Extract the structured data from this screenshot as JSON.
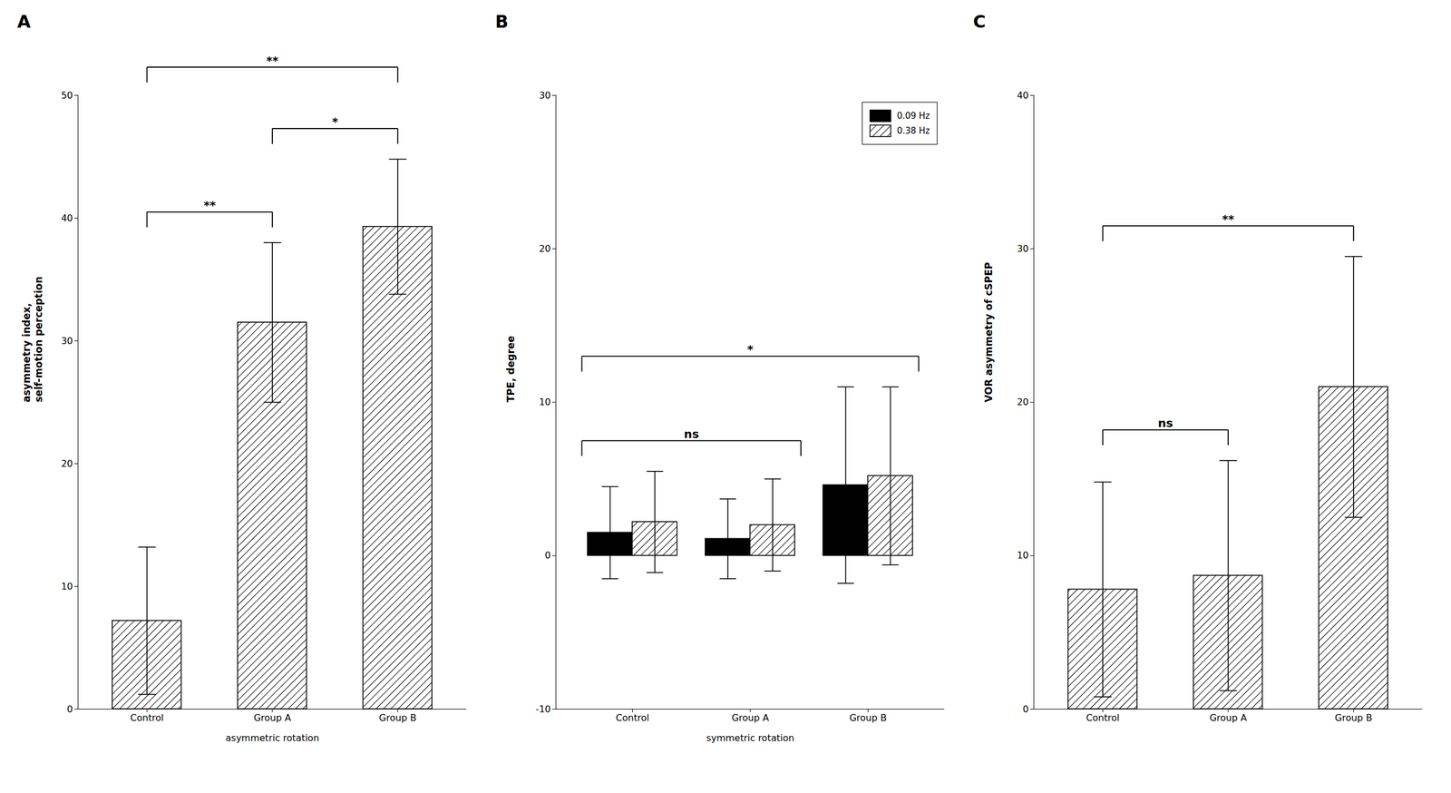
{
  "chart_data": [
    {
      "type": "bar",
      "title": "A",
      "categories": [
        "Control",
        "Group A",
        "Group B"
      ],
      "values": [
        7.2,
        31.5,
        39.3
      ],
      "errors": [
        6.0,
        6.5,
        5.5
      ],
      "color": "#ffffff",
      "ylabel": "asymmetry index,\nself-motion perception",
      "xlabel": "asymmetric rotation",
      "ylim": [
        0,
        50
      ],
      "yticks": [
        0,
        10,
        20,
        30,
        40,
        50
      ],
      "grid": false,
      "annotations": [
        {
          "text": "**",
          "between": [
            "Control",
            "Group A"
          ]
        },
        {
          "text": "**",
          "between": [
            "Control",
            "Group B"
          ]
        },
        {
          "text": "*",
          "between": [
            "Group A",
            "Group B"
          ]
        }
      ]
    },
    {
      "type": "bar",
      "title": "B",
      "categories": [
        "Control",
        "Group A",
        "Group B"
      ],
      "series": [
        {
          "name": "0.09 Hz",
          "color": "#000000",
          "values": [
            1.5,
            1.1,
            4.6
          ],
          "errors": [
            3.0,
            2.6,
            6.4
          ]
        },
        {
          "name": "0.38 Hz",
          "color": "#ffffff",
          "values": [
            2.2,
            2.0,
            5.2
          ],
          "errors": [
            3.3,
            3.0,
            5.8
          ]
        }
      ],
      "ylabel": "TPE, degree",
      "xlabel": "symmetric rotation",
      "ylim": [
        -10,
        30
      ],
      "yticks": [
        -10,
        0,
        10,
        20,
        30
      ],
      "grid": false,
      "legend": "upper right",
      "annotations": [
        {
          "text": "ns",
          "between": [
            "Control",
            "Group A"
          ]
        },
        {
          "text": "*",
          "between": [
            "Control",
            "Group B"
          ]
        }
      ]
    },
    {
      "type": "bar",
      "title": "C",
      "categories": [
        "Control",
        "Group A",
        "Group B"
      ],
      "values": [
        7.8,
        8.7,
        21.0
      ],
      "errors": [
        7.0,
        7.5,
        8.5
      ],
      "color": "#ffffff",
      "ylabel": "VOR asymmetry of cSPEP",
      "ylim": [
        0,
        40
      ],
      "yticks": [
        0,
        10,
        20,
        30,
        40
      ],
      "grid": false,
      "annotations": [
        {
          "text": "ns",
          "between": [
            "Control",
            "Group A"
          ]
        },
        {
          "text": "**",
          "between": [
            "Control",
            "Group B"
          ]
        }
      ]
    }
  ]
}
